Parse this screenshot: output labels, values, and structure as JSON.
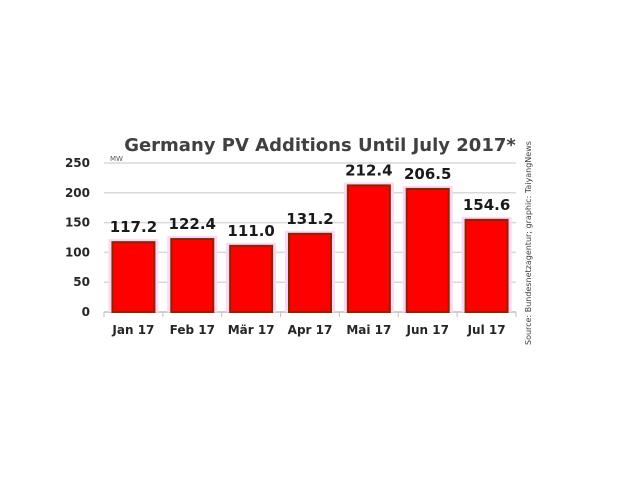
{
  "chart_data": {
    "type": "bar",
    "title": "Germany PV Additions Until July 2017*",
    "unit_label": "MW",
    "source": "Source: Bundesnetzagentur; graphic: TaiyangNews",
    "categories": [
      "Jan 17",
      "Feb 17",
      "Mär 17",
      "Apr 17",
      "Mai 17",
      "Jun 17",
      "Jul 17"
    ],
    "values": [
      117.2,
      122.4,
      111.0,
      131.2,
      212.4,
      206.5,
      154.6
    ],
    "data_labels": [
      "117.2",
      "122.4",
      "111.0",
      "131.2",
      "212.4",
      "206.5",
      "154.6"
    ],
    "ylim": [
      0,
      250
    ],
    "yticks": [
      0,
      50,
      100,
      150,
      200,
      250
    ],
    "grid": true,
    "legend": "none",
    "colors": {
      "bar": "#ff0000",
      "bar_edge": "#8b2500",
      "bar_glow": "#ffd6f5",
      "grid": "#d9d9d9"
    }
  }
}
